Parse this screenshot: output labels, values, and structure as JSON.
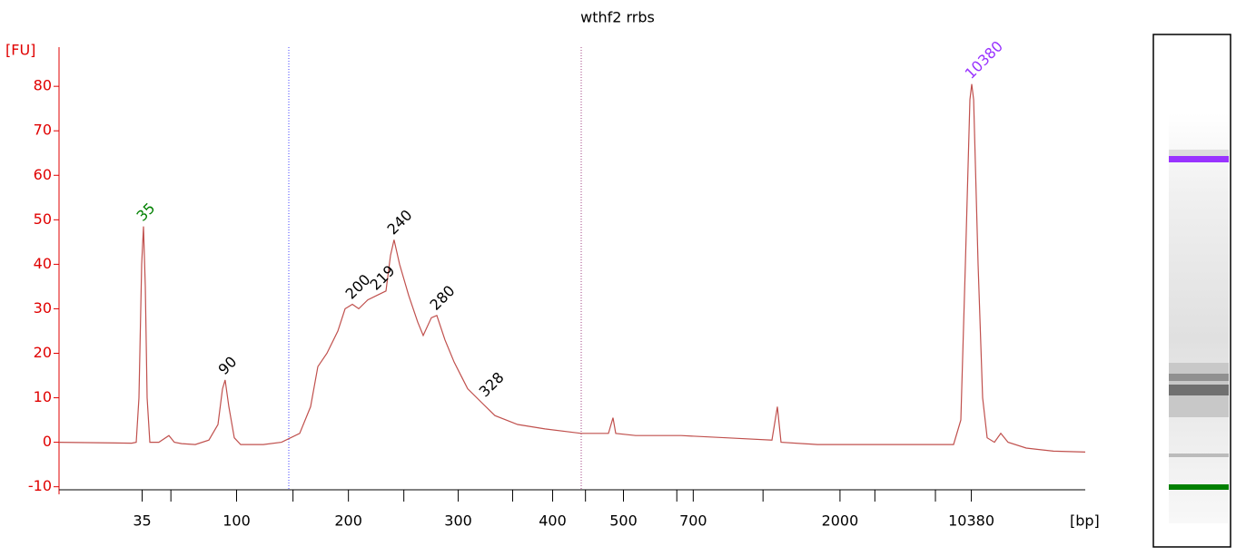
{
  "chart_data": {
    "type": "line",
    "title": "wthf2 rrbs",
    "y_label": "[FU]",
    "x_label": "[bp]",
    "axis_color": "#e00000",
    "series": [
      {
        "color": "#c0504d",
        "x": [
          0,
          7.08,
          7.52,
          7.79,
          8.05,
          8.23,
          8.41,
          8.58,
          8.85,
          9.73,
          10.71,
          11.24,
          11.95,
          13.27,
          14.6,
          15.49,
          15.93,
          16.19,
          16.55,
          17.08,
          17.7,
          19.91,
          21.68,
          23.45,
          24.51,
          25.22,
          26.11,
          27.17,
          27.88,
          28.58,
          29.2,
          30.09,
          30.97,
          31.86,
          32.3,
          32.65,
          33.19,
          34.07,
          34.96,
          35.49,
          36.28,
          36.81,
          37.61,
          38.5,
          39.82,
          41.15,
          42.48,
          44.69,
          47.35,
          50.88,
          53.54,
          53.98,
          54.25,
          56.19,
          60.62,
          65.04,
          69.47,
          70,
          70.35,
          73.89,
          78.32,
          82.74,
          87.17,
          87.88,
          88.32,
          88.76,
          88.94,
          89.12,
          89.56,
          90,
          90.44,
          91.15,
          91.77,
          92.48,
          94.25,
          96.9,
          100
        ],
        "values": [
          0,
          -0.2,
          0,
          10,
          40,
          48.5,
          35,
          10,
          0,
          0,
          1.5,
          0,
          -0.3,
          -0.5,
          0.5,
          4,
          12,
          14,
          8,
          1,
          -0.5,
          -0.5,
          0,
          2,
          8,
          17,
          20,
          25,
          30,
          31,
          30,
          32,
          33,
          34,
          42,
          45.5,
          40,
          33,
          27,
          24,
          28,
          28.5,
          23,
          18,
          12,
          9,
          6,
          4,
          3,
          2,
          2,
          5.5,
          2,
          1.5,
          1.5,
          1,
          0.5,
          8,
          0,
          -0.5,
          -0.5,
          -0.5,
          -0.5,
          5,
          40,
          77,
          80.5,
          77,
          40,
          10,
          1,
          0,
          2,
          0,
          -1.3,
          -2,
          -2.2
        ]
      }
    ],
    "annotations": [
      {
        "text": "35",
        "x": 8.23,
        "y": 48.5,
        "color": "#008000"
      },
      {
        "text": "90",
        "x": 16.19,
        "y": 14,
        "color": "#000000"
      },
      {
        "text": "200",
        "x": 28.58,
        "y": 31,
        "color": "#000000"
      },
      {
        "text": "219",
        "x": 30.97,
        "y": 33,
        "color": "#000000"
      },
      {
        "text": "240",
        "x": 32.65,
        "y": 45.5,
        "color": "#000000"
      },
      {
        "text": "280",
        "x": 36.81,
        "y": 28.5,
        "color": "#000000"
      },
      {
        "text": "328",
        "x": 41.6,
        "y": 9,
        "color": "#000000"
      },
      {
        "text": "10380",
        "x": 88.94,
        "y": 80.5,
        "color": "#9933ff"
      }
    ],
    "xlim": [
      0,
      100
    ],
    "xticks": [
      {
        "value": 8.1,
        "label": "35"
      },
      {
        "value": 10.9,
        "label": null
      },
      {
        "value": 17.3,
        "label": "100"
      },
      {
        "value": 22.8,
        "label": null
      },
      {
        "value": 28.2,
        "label": "200"
      },
      {
        "value": 33.6,
        "label": null
      },
      {
        "value": 38.9,
        "label": "300"
      },
      {
        "value": 44.2,
        "label": null
      },
      {
        "value": 48.1,
        "label": "400"
      },
      {
        "value": 51.3,
        "label": null
      },
      {
        "value": 55.0,
        "label": "500"
      },
      {
        "value": 60.2,
        "label": null
      },
      {
        "value": 61.8,
        "label": "700"
      },
      {
        "value": 68.6,
        "label": null
      },
      {
        "value": 76.1,
        "label": "2000"
      },
      {
        "value": 79.5,
        "label": null
      },
      {
        "value": 85.4,
        "label": null
      },
      {
        "value": 88.9,
        "label": "10380"
      }
    ],
    "ylim": [
      -11.7,
      88.8
    ],
    "yticks": [
      -10,
      0,
      10,
      20,
      30,
      40,
      50,
      60,
      70,
      80
    ]
  }
}
